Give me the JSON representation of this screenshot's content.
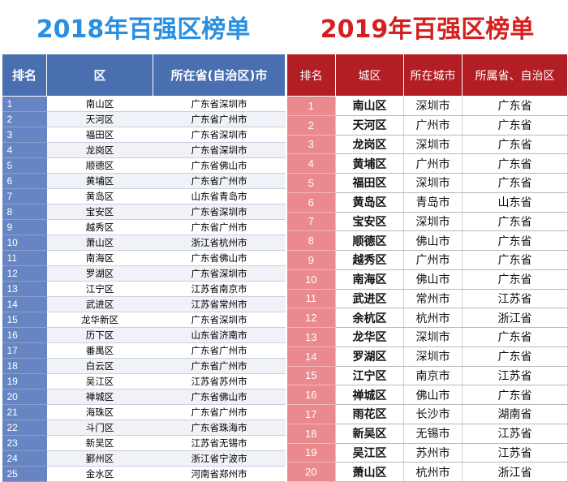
{
  "title_2018": "2018年百强区榜单",
  "title_2019": "2019年百强区榜单",
  "colors": {
    "title_2018": "#2a8fe0",
    "title_2019": "#d42020",
    "header_2018": "#4a6fb0",
    "rank_2018": "#6785c2",
    "header_2019": "#b31d24",
    "rank_2019": "#ea8a8e"
  },
  "table_2018": {
    "headers": [
      "排名",
      "区",
      "所在省(自治区)市"
    ],
    "rows": [
      [
        "1",
        "南山区",
        "广东省深圳市"
      ],
      [
        "2",
        "天河区",
        "广东省广州市"
      ],
      [
        "3",
        "福田区",
        "广东省深圳市"
      ],
      [
        "4",
        "龙岗区",
        "广东省深圳市"
      ],
      [
        "5",
        "顺德区",
        "广东省佛山市"
      ],
      [
        "6",
        "黄埔区",
        "广东省广州市"
      ],
      [
        "7",
        "黄岛区",
        "山东省青岛市"
      ],
      [
        "8",
        "宝安区",
        "广东省深圳市"
      ],
      [
        "9",
        "越秀区",
        "广东省广州市"
      ],
      [
        "10",
        "萧山区",
        "浙江省杭州市"
      ],
      [
        "11",
        "南海区",
        "广东省佛山市"
      ],
      [
        "12",
        "罗湖区",
        "广东省深圳市"
      ],
      [
        "13",
        "江宁区",
        "江苏省南京市"
      ],
      [
        "14",
        "武进区",
        "江苏省常州市"
      ],
      [
        "15",
        "龙华新区",
        "广东省深圳市"
      ],
      [
        "16",
        "历下区",
        "山东省济南市"
      ],
      [
        "17",
        "番禺区",
        "广东省广州市"
      ],
      [
        "18",
        "白云区",
        "广东省广州市"
      ],
      [
        "19",
        "吴江区",
        "江苏省苏州市"
      ],
      [
        "20",
        "禅城区",
        "广东省佛山市"
      ],
      [
        "21",
        "海珠区",
        "广东省广州市"
      ],
      [
        "22",
        "斗门区",
        "广东省珠海市"
      ],
      [
        "23",
        "新吴区",
        "江苏省无锡市"
      ],
      [
        "24",
        "鄞州区",
        "浙江省宁波市"
      ],
      [
        "25",
        "金水区",
        "河南省郑州市"
      ]
    ]
  },
  "table_2019": {
    "headers": [
      "排名",
      "城区",
      "所在城市",
      "所属省、自治区"
    ],
    "rows": [
      [
        "1",
        "南山区",
        "深圳市",
        "广东省"
      ],
      [
        "2",
        "天河区",
        "广州市",
        "广东省"
      ],
      [
        "3",
        "龙岗区",
        "深圳市",
        "广东省"
      ],
      [
        "4",
        "黄埔区",
        "广州市",
        "广东省"
      ],
      [
        "5",
        "福田区",
        "深圳市",
        "广东省"
      ],
      [
        "6",
        "黄岛区",
        "青岛市",
        "山东省"
      ],
      [
        "7",
        "宝安区",
        "深圳市",
        "广东省"
      ],
      [
        "8",
        "顺德区",
        "佛山市",
        "广东省"
      ],
      [
        "9",
        "越秀区",
        "广州市",
        "广东省"
      ],
      [
        "10",
        "南海区",
        "佛山市",
        "广东省"
      ],
      [
        "11",
        "武进区",
        "常州市",
        "江苏省"
      ],
      [
        "12",
        "余杭区",
        "杭州市",
        "浙江省"
      ],
      [
        "13",
        "龙华区",
        "深圳市",
        "广东省"
      ],
      [
        "14",
        "罗湖区",
        "深圳市",
        "广东省"
      ],
      [
        "15",
        "江宁区",
        "南京市",
        "江苏省"
      ],
      [
        "16",
        "禅城区",
        "佛山市",
        "广东省"
      ],
      [
        "17",
        "雨花区",
        "长沙市",
        "湖南省"
      ],
      [
        "18",
        "新吴区",
        "无锡市",
        "江苏省"
      ],
      [
        "19",
        "吴江区",
        "苏州市",
        "江苏省"
      ],
      [
        "20",
        "萧山区",
        "杭州市",
        "浙江省"
      ]
    ]
  }
}
